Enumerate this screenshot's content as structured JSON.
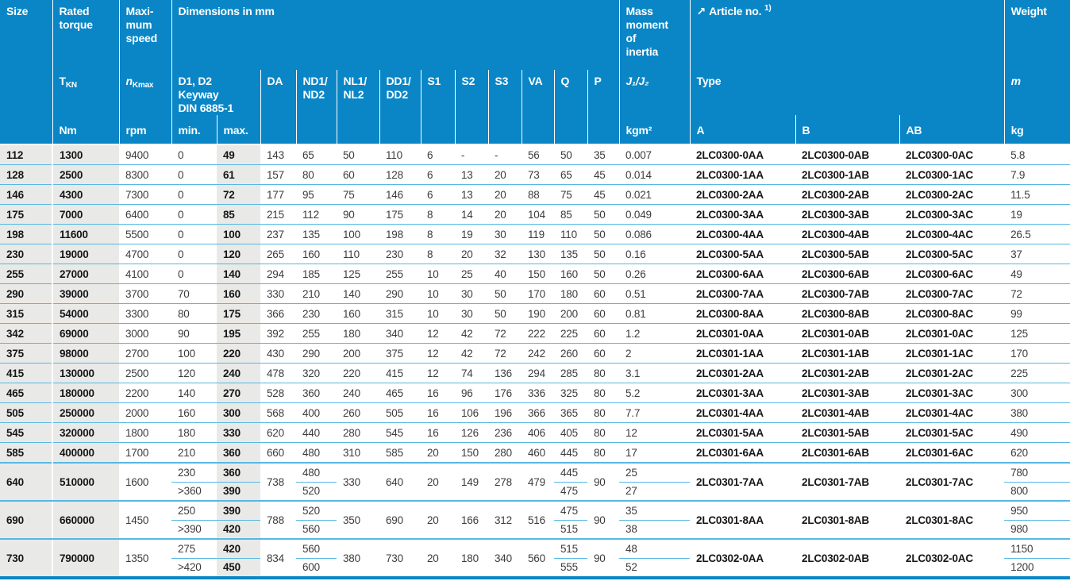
{
  "header": {
    "size": "Size",
    "rated_torque": "Rated\ntorque",
    "tkn_main": "T",
    "tkn_sub": "KN",
    "torque_unit": "Nm",
    "max_speed": "Maxi-\nmum\nspeed",
    "n_main": "n",
    "n_sub": "Kmax",
    "speed_unit": "rpm",
    "dimensions": "Dimensions in mm",
    "keyway": "D1, D2\nKeyway\nDIN 6885-1",
    "min": "min.",
    "max": "max.",
    "da": "DA",
    "nd": "ND1/\nND2",
    "nl": "NL1/\nNL2",
    "dd": "DD1/\nDD2",
    "s1": "S1",
    "s2": "S2",
    "s3": "S3",
    "va": "VA",
    "q": "Q",
    "p": "P",
    "mass_moment": "Mass\nmoment\nof\ninertia",
    "inertia_symbol": "J₁/J₂",
    "inertia_unit": "kgm²",
    "article_arrow": "↗",
    "article": "Article no.",
    "article_sup": "1)",
    "type": "Type",
    "col_a": "A",
    "col_b": "B",
    "col_ab": "AB",
    "weight": "Weight",
    "weight_symbol": "m",
    "weight_unit": "kg"
  },
  "rows": [
    {
      "size": "112",
      "torque": "1300",
      "rpm": "9400",
      "min": "0",
      "max": "49",
      "da": "143",
      "nd": "65",
      "nl": "50",
      "dd": "110",
      "s1": "6",
      "s2": "-",
      "s3": "-",
      "va": "56",
      "q": "50",
      "p": "35",
      "j": "0.007",
      "a": "2LC0300-0AA",
      "b": "2LC0300-0AB",
      "ab": "2LC0300-0AC",
      "kg": "5.8"
    },
    {
      "size": "128",
      "torque": "2500",
      "rpm": "8300",
      "min": "0",
      "max": "61",
      "da": "157",
      "nd": "80",
      "nl": "60",
      "dd": "128",
      "s1": "6",
      "s2": "13",
      "s3": "20",
      "va": "73",
      "q": "65",
      "p": "45",
      "j": "0.014",
      "a": "2LC0300-1AA",
      "b": "2LC0300-1AB",
      "ab": "2LC0300-1AC",
      "kg": "7.9"
    },
    {
      "size": "146",
      "torque": "4300",
      "rpm": "7300",
      "min": "0",
      "max": "72",
      "da": "177",
      "nd": "95",
      "nl": "75",
      "dd": "146",
      "s1": "6",
      "s2": "13",
      "s3": "20",
      "va": "88",
      "q": "75",
      "p": "45",
      "j": "0.021",
      "a": "2LC0300-2AA",
      "b": "2LC0300-2AB",
      "ab": "2LC0300-2AC",
      "kg": "11.5"
    },
    {
      "size": "175",
      "torque": "7000",
      "rpm": "6400",
      "min": "0",
      "max": "85",
      "da": "215",
      "nd": "112",
      "nl": "90",
      "dd": "175",
      "s1": "8",
      "s2": "14",
      "s3": "20",
      "va": "104",
      "q": "85",
      "p": "50",
      "j": "0.049",
      "a": "2LC0300-3AA",
      "b": "2LC0300-3AB",
      "ab": "2LC0300-3AC",
      "kg": "19"
    },
    {
      "size": "198",
      "torque": "11600",
      "rpm": "5500",
      "min": "0",
      "max": "100",
      "da": "237",
      "nd": "135",
      "nl": "100",
      "dd": "198",
      "s1": "8",
      "s2": "19",
      "s3": "30",
      "va": "119",
      "q": "110",
      "p": "50",
      "j": "0.086",
      "a": "2LC0300-4AA",
      "b": "2LC0300-4AB",
      "ab": "2LC0300-4AC",
      "kg": "26.5"
    },
    {
      "size": "230",
      "torque": "19000",
      "rpm": "4700",
      "min": "0",
      "max": "120",
      "da": "265",
      "nd": "160",
      "nl": "110",
      "dd": "230",
      "s1": "8",
      "s2": "20",
      "s3": "32",
      "va": "130",
      "q": "135",
      "p": "50",
      "j": "0.16",
      "a": "2LC0300-5AA",
      "b": "2LC0300-5AB",
      "ab": "2LC0300-5AC",
      "kg": "37"
    },
    {
      "size": "255",
      "torque": "27000",
      "rpm": "4100",
      "min": "0",
      "max": "140",
      "da": "294",
      "nd": "185",
      "nl": "125",
      "dd": "255",
      "s1": "10",
      "s2": "25",
      "s3": "40",
      "va": "150",
      "q": "160",
      "p": "50",
      "j": "0.26",
      "a": "2LC0300-6AA",
      "b": "2LC0300-6AB",
      "ab": "2LC0300-6AC",
      "kg": "49"
    },
    {
      "size": "290",
      "torque": "39000",
      "rpm": "3700",
      "min": "70",
      "max": "160",
      "da": "330",
      "nd": "210",
      "nl": "140",
      "dd": "290",
      "s1": "10",
      "s2": "30",
      "s3": "50",
      "va": "170",
      "q": "180",
      "p": "60",
      "j": "0.51",
      "a": "2LC0300-7AA",
      "b": "2LC0300-7AB",
      "ab": "2LC0300-7AC",
      "kg": "72"
    },
    {
      "size": "315",
      "torque": "54000",
      "rpm": "3300",
      "min": "80",
      "max": "175",
      "da": "366",
      "nd": "230",
      "nl": "160",
      "dd": "315",
      "s1": "10",
      "s2": "30",
      "s3": "50",
      "va": "190",
      "q": "200",
      "p": "60",
      "j": "0.81",
      "a": "2LC0300-8AA",
      "b": "2LC0300-8AB",
      "ab": "2LC0300-8AC",
      "kg": "99"
    },
    {
      "size": "342",
      "torque": "69000",
      "rpm": "3000",
      "min": "90",
      "max": "195",
      "da": "392",
      "nd": "255",
      "nl": "180",
      "dd": "340",
      "s1": "12",
      "s2": "42",
      "s3": "72",
      "va": "222",
      "q": "225",
      "p": "60",
      "j": "1.2",
      "a": "2LC0301-0AA",
      "b": "2LC0301-0AB",
      "ab": "2LC0301-0AC",
      "kg": "125"
    },
    {
      "size": "375",
      "torque": "98000",
      "rpm": "2700",
      "min": "100",
      "max": "220",
      "da": "430",
      "nd": "290",
      "nl": "200",
      "dd": "375",
      "s1": "12",
      "s2": "42",
      "s3": "72",
      "va": "242",
      "q": "260",
      "p": "60",
      "j": "2",
      "a": "2LC0301-1AA",
      "b": "2LC0301-1AB",
      "ab": "2LC0301-1AC",
      "kg": "170"
    },
    {
      "size": "415",
      "torque": "130000",
      "rpm": "2500",
      "min": "120",
      "max": "240",
      "da": "478",
      "nd": "320",
      "nl": "220",
      "dd": "415",
      "s1": "12",
      "s2": "74",
      "s3": "136",
      "va": "294",
      "q": "285",
      "p": "80",
      "j": "3.1",
      "a": "2LC0301-2AA",
      "b": "2LC0301-2AB",
      "ab": "2LC0301-2AC",
      "kg": "225"
    },
    {
      "size": "465",
      "torque": "180000",
      "rpm": "2200",
      "min": "140",
      "max": "270",
      "da": "528",
      "nd": "360",
      "nl": "240",
      "dd": "465",
      "s1": "16",
      "s2": "96",
      "s3": "176",
      "va": "336",
      "q": "325",
      "p": "80",
      "j": "5.2",
      "a": "2LC0301-3AA",
      "b": "2LC0301-3AB",
      "ab": "2LC0301-3AC",
      "kg": "300"
    },
    {
      "size": "505",
      "torque": "250000",
      "rpm": "2000",
      "min": "160",
      "max": "300",
      "da": "568",
      "nd": "400",
      "nl": "260",
      "dd": "505",
      "s1": "16",
      "s2": "106",
      "s3": "196",
      "va": "366",
      "q": "365",
      "p": "80",
      "j": "7.7",
      "a": "2LC0301-4AA",
      "b": "2LC0301-4AB",
      "ab": "2LC0301-4AC",
      "kg": "380"
    },
    {
      "size": "545",
      "torque": "320000",
      "rpm": "1800",
      "min": "180",
      "max": "330",
      "da": "620",
      "nd": "440",
      "nl": "280",
      "dd": "545",
      "s1": "16",
      "s2": "126",
      "s3": "236",
      "va": "406",
      "q": "405",
      "p": "80",
      "j": "12",
      "a": "2LC0301-5AA",
      "b": "2LC0301-5AB",
      "ab": "2LC0301-5AC",
      "kg": "490"
    },
    {
      "size": "585",
      "torque": "400000",
      "rpm": "1700",
      "min": "210",
      "max": "360",
      "da": "660",
      "nd": "480",
      "nl": "310",
      "dd": "585",
      "s1": "20",
      "s2": "150",
      "s3": "280",
      "va": "460",
      "q": "445",
      "p": "80",
      "j": "17",
      "a": "2LC0301-6AA",
      "b": "2LC0301-6AB",
      "ab": "2LC0301-6AC",
      "kg": "620"
    },
    {
      "size": "640",
      "torque": "510000",
      "rpm": "1600",
      "min": [
        "230",
        ">360"
      ],
      "max": [
        "360",
        "390"
      ],
      "da": "738",
      "nd": [
        "480",
        "520"
      ],
      "nl": "330",
      "dd": "640",
      "s1": "20",
      "s2": "149",
      "s3": "278",
      "va": "479",
      "q": [
        "445",
        "475"
      ],
      "p": "90",
      "j": [
        "25",
        "27"
      ],
      "a": "2LC0301-7AA",
      "b": "2LC0301-7AB",
      "ab": "2LC0301-7AC",
      "kg": [
        "780",
        "800"
      ]
    },
    {
      "size": "690",
      "torque": "660000",
      "rpm": "1450",
      "min": [
        "250",
        ">390"
      ],
      "max": [
        "390",
        "420"
      ],
      "da": "788",
      "nd": [
        "520",
        "560"
      ],
      "nl": "350",
      "dd": "690",
      "s1": "20",
      "s2": "166",
      "s3": "312",
      "va": "516",
      "q": [
        "475",
        "515"
      ],
      "p": "90",
      "j": [
        "35",
        "38"
      ],
      "a": "2LC0301-8AA",
      "b": "2LC0301-8AB",
      "ab": "2LC0301-8AC",
      "kg": [
        "950",
        "980"
      ]
    },
    {
      "size": "730",
      "torque": "790000",
      "rpm": "1350",
      "min": [
        "275",
        ">420"
      ],
      "max": [
        "420",
        "450"
      ],
      "da": "834",
      "nd": [
        "560",
        "600"
      ],
      "nl": "380",
      "dd": "730",
      "s1": "20",
      "s2": "180",
      "s3": "340",
      "va": "560",
      "q": [
        "515",
        "555"
      ],
      "p": "90",
      "j": [
        "48",
        "52"
      ],
      "a": "2LC0302-0AA",
      "b": "2LC0302-0AB",
      "ab": "2LC0302-0AC",
      "kg": [
        "1150",
        "1200"
      ]
    }
  ],
  "colors": {
    "header_bg": "#0a86c6",
    "row_line": "#58b7e3",
    "shade": "#e9e9e8",
    "text": "#3c3c3c",
    "text_bold": "#161616"
  }
}
